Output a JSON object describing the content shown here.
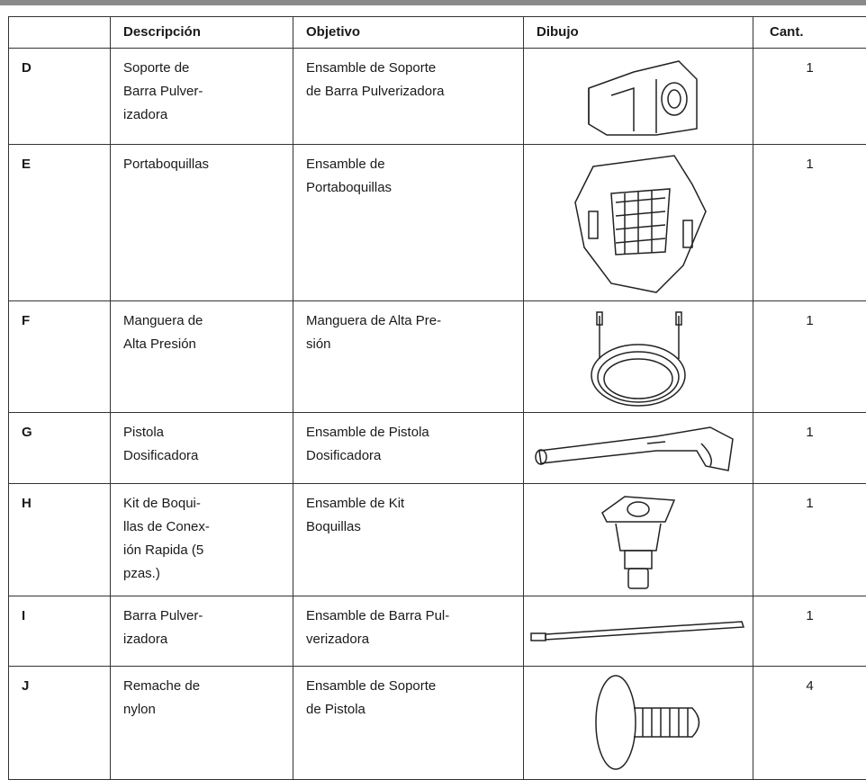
{
  "table": {
    "header": [
      "Descripción",
      "Objetivo",
      "Dibujo",
      "Cant."
    ],
    "rows": [
      {
        "id": "D",
        "description": "Soporte de\nBarra Pulver-\nizadora",
        "purpose": "Ensamble de Soporte\nde Barra Pulverizadora",
        "quantity": 1
      },
      {
        "id": "E",
        "description": "Portaboquillas",
        "purpose": "Ensamble de\nPortaboquillas",
        "quantity": 1
      },
      {
        "id": "F",
        "description": "Manguera de\nAlta Presión",
        "purpose": "Manguera de Alta Pre-\nsión",
        "quantity": 1
      },
      {
        "id": "G",
        "description": "Pistola\nDosificadora",
        "purpose": "Ensamble de Pistola\nDosificadora",
        "quantity": 1
      },
      {
        "id": "H",
        "description": "Kit de Boqui-\nllas de Conex-\nión Rapida (5\npzas.)",
        "purpose": "Ensamble de Kit\nBoquillas",
        "quantity": 1
      },
      {
        "id": "I",
        "description": "Barra Pulver-\nizadora",
        "purpose": "Ensamble de Barra Pul-\nverizadora",
        "quantity": 1
      },
      {
        "id": "J",
        "description": "Remache de\nnylon",
        "purpose": "Ensamble de Soporte\nde Pistola",
        "quantity": 4
      }
    ]
  }
}
